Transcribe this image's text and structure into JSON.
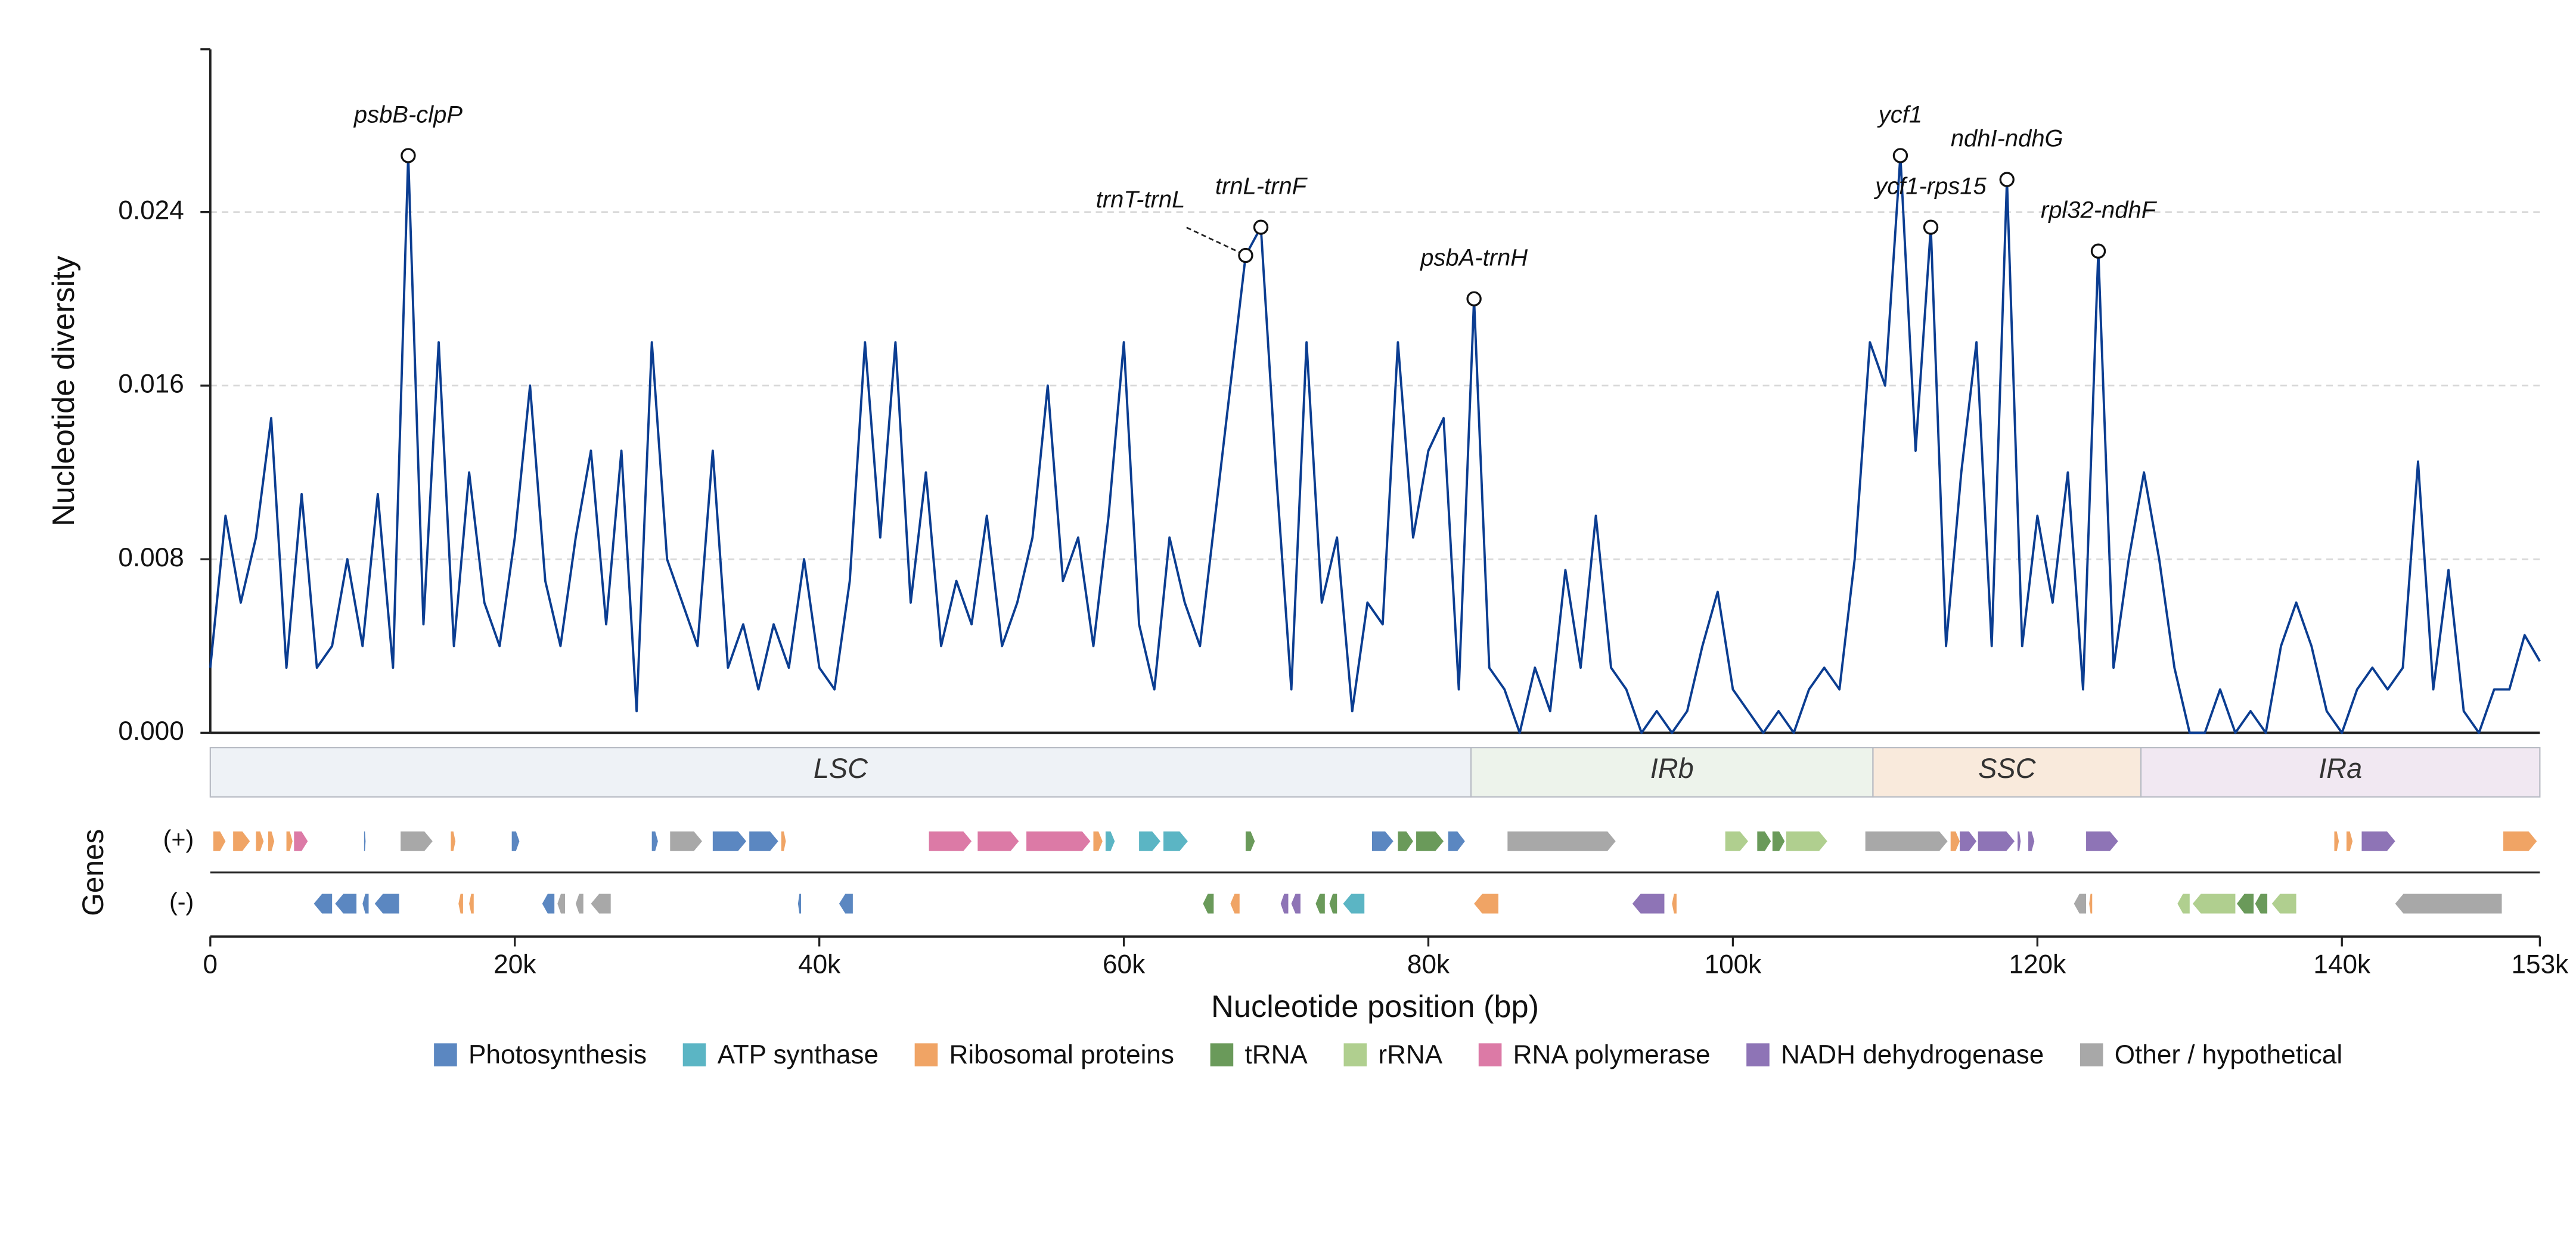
{
  "chart_data": {
    "type": "line",
    "y_label": "Nucleotide diversity",
    "x_label": "Nucleotide position (bp)",
    "color": "#0b3d91",
    "xlim": [
      0,
      153000
    ],
    "ylim": [
      0,
      0.0315
    ],
    "xticks": [
      0,
      {
        "value": 20000,
        "label": "20k"
      },
      {
        "value": 40000,
        "label": "40k"
      },
      {
        "value": 60000,
        "label": "60k"
      },
      {
        "value": 80000,
        "label": "80k"
      },
      {
        "value": 100000,
        "label": "100k"
      },
      {
        "value": 120000,
        "label": "120k"
      },
      {
        "value": 140000,
        "label": "140k"
      },
      {
        "value": 153000,
        "label": "153k"
      }
    ],
    "yticks": [
      {
        "value": 0,
        "label": "0.000"
      },
      0.008,
      0.016,
      0.024
    ],
    "grid": true,
    "x": [
      0,
      1000,
      2000,
      3000,
      4000,
      5000,
      6000,
      7000,
      8000,
      9000,
      10000,
      11000,
      12000,
      13000,
      14000,
      15000,
      16000,
      17000,
      18000,
      19000,
      20000,
      21000,
      22000,
      23000,
      24000,
      25000,
      26000,
      27000,
      28000,
      29000,
      30000,
      31000,
      32000,
      33000,
      34000,
      35000,
      36000,
      37000,
      38000,
      39000,
      40000,
      41000,
      42000,
      43000,
      44000,
      45000,
      46000,
      47000,
      48000,
      49000,
      50000,
      51000,
      52000,
      53000,
      54000,
      55000,
      56000,
      57000,
      58000,
      59000,
      60000,
      61000,
      62000,
      63000,
      64000,
      65000,
      66000,
      67000,
      68000,
      69000,
      70000,
      71000,
      72000,
      73000,
      74000,
      75000,
      76000,
      77000,
      78000,
      79000,
      80000,
      81000,
      82000,
      83000,
      84000,
      85000,
      86000,
      87000,
      88000,
      89000,
      90000,
      91000,
      92000,
      93000,
      94000,
      95000,
      96000,
      97000,
      98000,
      99000,
      100000,
      101000,
      102000,
      103000,
      104000,
      105000,
      106000,
      107000,
      108000,
      109000,
      110000,
      111000,
      112000,
      113000,
      114000,
      115000,
      116000,
      117000,
      118000,
      119000,
      120000,
      121000,
      122000,
      123000,
      124000,
      125000,
      126000,
      127000,
      128000,
      129000,
      130000,
      131000,
      132000,
      133000,
      134000,
      135000,
      136000,
      137000,
      138000,
      139000,
      140000,
      141000,
      142000,
      143000,
      144000,
      145000,
      146000,
      147000,
      148000,
      149000,
      150000,
      151000,
      152000,
      153000
    ],
    "values": [
      0.003,
      0.01,
      0.006,
      0.009,
      0.0145,
      0.003,
      0.011,
      0.003,
      0.004,
      0.008,
      0.004,
      0.011,
      0.003,
      0.0266,
      0.005,
      0.018,
      0.004,
      0.012,
      0.006,
      0.004,
      0.009,
      0.016,
      0.007,
      0.004,
      0.009,
      0.013,
      0.005,
      0.013,
      0.001,
      0.018,
      0.008,
      0.006,
      0.004,
      0.013,
      0.003,
      0.005,
      0.002,
      0.005,
      0.003,
      0.008,
      0.003,
      0.002,
      0.007,
      0.018,
      0.009,
      0.018,
      0.006,
      0.012,
      0.004,
      0.007,
      0.005,
      0.01,
      0.004,
      0.006,
      0.009,
      0.016,
      0.007,
      0.009,
      0.004,
      0.01,
      0.018,
      0.005,
      0.002,
      0.009,
      0.006,
      0.004,
      0.01,
      0.016,
      0.022,
      0.0233,
      0.012,
      0.002,
      0.018,
      0.006,
      0.009,
      0.001,
      0.006,
      0.005,
      0.018,
      0.009,
      0.013,
      0.0145,
      0.002,
      0.02,
      0.003,
      0.002,
      0,
      0.003,
      0.001,
      0.0075,
      0.003,
      0.01,
      0.003,
      0.002,
      0,
      0.001,
      0,
      0.001,
      0.004,
      0.0065,
      0.002,
      0.001,
      0,
      0.001,
      0,
      0.002,
      0.003,
      0.002,
      0.008,
      0.018,
      0.016,
      0.0266,
      0.013,
      0.0233,
      0.004,
      0.012,
      0.018,
      0.004,
      0.0255,
      0.004,
      0.01,
      0.006,
      0.012,
      0.002,
      0.0222,
      0.003,
      0.008,
      0.012,
      0.008,
      0.003,
      0,
      0,
      0.002,
      0,
      0.001,
      0,
      0.004,
      0.006,
      0.004,
      0.001,
      0,
      0.002,
      0.003,
      0.002,
      0.003,
      0.0125,
      0.002,
      0.0075,
      0.001,
      0,
      0.002,
      0.002,
      0.0045,
      0.0033
    ],
    "annotations": [
      {
        "label": "psbB-clpP",
        "x": 13000,
        "y": 0.0266
      },
      {
        "label": "trnT-trnL",
        "x": 68000,
        "y": 0.022
      },
      {
        "label": "trnL-trnF",
        "x": 69000,
        "y": 0.0233
      },
      {
        "label": "psbA-trnH",
        "x": 83000,
        "y": 0.02
      },
      {
        "label": "ycf1",
        "x": 111000,
        "y": 0.0266
      },
      {
        "label": "ycf1-rps15",
        "x": 113000,
        "y": 0.0233
      },
      {
        "label": "ndhI-ndhG",
        "x": 118000,
        "y": 0.0255
      },
      {
        "label": "rpl32-ndhF",
        "x": 124000,
        "y": 0.0222
      }
    ],
    "regions": [
      {
        "name": "LSC",
        "start": 0,
        "end": 82800,
        "color": "#eef2f6"
      },
      {
        "name": "IRb",
        "start": 82800,
        "end": 109200,
        "color": "#edf3eb"
      },
      {
        "name": "SSC",
        "start": 109200,
        "end": 126800,
        "color": "#f9eadc"
      },
      {
        "name": "IRa",
        "start": 126800,
        "end": 153000,
        "color": "#f1e8f2"
      }
    ],
    "genes_label": "Genes",
    "gene_categories": [
      {
        "name": "Photosynthesis",
        "color": "#5b87c1"
      },
      {
        "name": "ATP synthase",
        "color": "#5bb5c4"
      },
      {
        "name": "Ribosomal proteins",
        "color": "#f0a465"
      },
      {
        "name": "tRNA",
        "color": "#6a9a5a"
      },
      {
        "name": "rRNA",
        "color": "#b0cf8f"
      },
      {
        "name": "RNA polymerase",
        "color": "#dc7aa6"
      },
      {
        "name": "NADH dehydrogenase",
        "color": "#8e74b6"
      },
      {
        "name": "Other / hypothetical",
        "color": "#a8a8a8"
      }
    ],
    "tracks": [
      {
        "label": "(+)",
        "genes": [
          [
            200,
            1000,
            2
          ],
          [
            1500,
            2600,
            2
          ],
          [
            3000,
            3500,
            2
          ],
          [
            3800,
            4200,
            2
          ],
          [
            5000,
            5400,
            2
          ],
          [
            5500,
            6400,
            5
          ],
          [
            10100,
            10200,
            0
          ],
          [
            12500,
            14600,
            7
          ],
          [
            15800,
            16100,
            2
          ],
          [
            19800,
            20300,
            0
          ],
          [
            29000,
            29400,
            0
          ],
          [
            30200,
            32300,
            7
          ],
          [
            33000,
            35200,
            0
          ],
          [
            35400,
            37300,
            0
          ],
          [
            37500,
            37800,
            2
          ],
          [
            47200,
            50000,
            5
          ],
          [
            50400,
            53100,
            5
          ],
          [
            53600,
            57800,
            5
          ],
          [
            58000,
            58600,
            2
          ],
          [
            58800,
            59400,
            1
          ],
          [
            61000,
            62400,
            1
          ],
          [
            62600,
            64200,
            1
          ],
          [
            68000,
            68600,
            3
          ],
          [
            76300,
            77700,
            0
          ],
          [
            78000,
            79000,
            3
          ],
          [
            79200,
            81000,
            3
          ],
          [
            81300,
            82400,
            0
          ],
          [
            85200,
            92300,
            7
          ],
          [
            99500,
            101000,
            4
          ],
          [
            101600,
            102500,
            3
          ],
          [
            102600,
            103400,
            3
          ],
          [
            103500,
            106200,
            4
          ],
          [
            108700,
            114100,
            7
          ],
          [
            114300,
            114900,
            2
          ],
          [
            114900,
            116000,
            6
          ],
          [
            116100,
            118500,
            6
          ],
          [
            118700,
            118900,
            6
          ],
          [
            119400,
            119800,
            6
          ],
          [
            123200,
            125300,
            6
          ],
          [
            139500,
            139800,
            2
          ],
          [
            140300,
            140700,
            2
          ],
          [
            141300,
            143500,
            6
          ],
          [
            150600,
            152800,
            2
          ]
        ]
      },
      {
        "label": "(-)",
        "genes": [
          [
            6800,
            8000,
            0
          ],
          [
            8200,
            9600,
            0
          ],
          [
            10000,
            10400,
            0
          ],
          [
            10800,
            12400,
            0
          ],
          [
            16300,
            16600,
            2
          ],
          [
            17000,
            17300,
            2
          ],
          [
            21800,
            22600,
            0
          ],
          [
            22800,
            23300,
            7
          ],
          [
            24000,
            24500,
            7
          ],
          [
            25000,
            26300,
            7
          ],
          [
            38600,
            38800,
            0
          ],
          [
            41300,
            42200,
            0
          ],
          [
            65200,
            65900,
            3
          ],
          [
            67000,
            67600,
            2
          ],
          [
            70300,
            70800,
            6
          ],
          [
            71000,
            71600,
            6
          ],
          [
            72600,
            73200,
            3
          ],
          [
            73500,
            74000,
            3
          ],
          [
            74400,
            75800,
            1
          ],
          [
            83000,
            84600,
            2
          ],
          [
            93400,
            95500,
            6
          ],
          [
            96000,
            96300,
            2
          ],
          [
            122400,
            123200,
            7
          ],
          [
            123400,
            123600,
            2
          ],
          [
            129200,
            130000,
            4
          ],
          [
            130200,
            133000,
            4
          ],
          [
            133100,
            134200,
            3
          ],
          [
            134300,
            135100,
            3
          ],
          [
            135400,
            137000,
            4
          ],
          [
            143500,
            150500,
            7
          ]
        ]
      }
    ]
  }
}
